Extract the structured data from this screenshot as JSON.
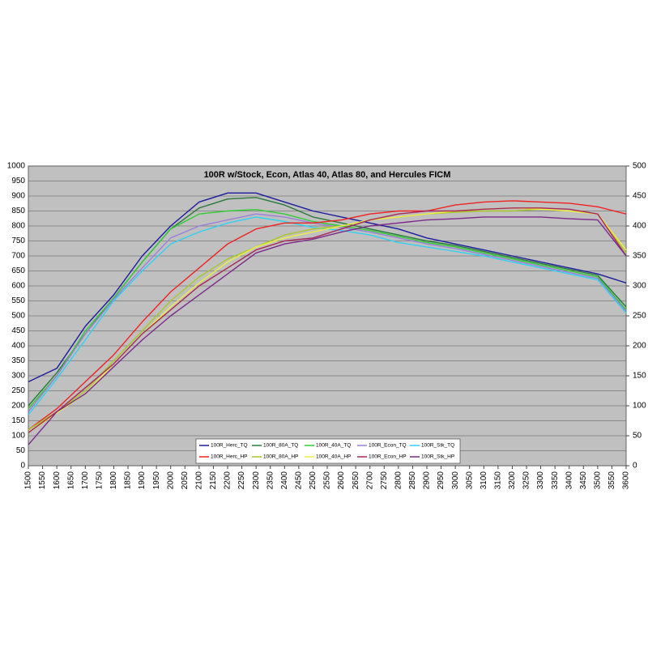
{
  "chart_data": {
    "type": "line",
    "title": "100R w/Stock, Econ, Atlas 40, Atlas 80, and Hercules FICM",
    "x": [
      1500,
      1600,
      1700,
      1800,
      1900,
      2000,
      2100,
      2200,
      2300,
      2400,
      2500,
      2600,
      2700,
      2800,
      2900,
      3000,
      3100,
      3200,
      3300,
      3400,
      3500,
      3600
    ],
    "xlim": [
      1500,
      3600
    ],
    "xticks": [
      1500,
      1550,
      1600,
      1650,
      1700,
      1750,
      1800,
      1850,
      1900,
      1950,
      2000,
      2050,
      2100,
      2150,
      2200,
      2250,
      2300,
      2350,
      2400,
      2450,
      2500,
      2550,
      2600,
      2650,
      2700,
      2750,
      2800,
      2850,
      2900,
      2950,
      3000,
      3050,
      3100,
      3150,
      3200,
      3250,
      3300,
      3350,
      3400,
      3450,
      3500,
      3550,
      3600
    ],
    "ylim": [
      0,
      1000
    ],
    "yticks": [
      0,
      50,
      100,
      150,
      200,
      250,
      300,
      350,
      400,
      450,
      500,
      550,
      600,
      650,
      700,
      750,
      800,
      850,
      900,
      950,
      1000
    ],
    "y2lim": [
      0,
      500
    ],
    "y2ticks": [
      0,
      50,
      100,
      150,
      200,
      250,
      300,
      350,
      400,
      450,
      500
    ],
    "grid": true,
    "series": [
      {
        "name": "100R_Herc_TQ",
        "color": "#1c1c9c",
        "values": [
          280,
          325,
          465,
          570,
          700,
          800,
          880,
          910,
          910,
          880,
          850,
          830,
          810,
          790,
          760,
          740,
          720,
          700,
          680,
          660,
          640,
          610
        ]
      },
      {
        "name": "100R_80A_TQ",
        "color": "#2a7a3a",
        "values": [
          200,
          310,
          440,
          560,
          680,
          790,
          860,
          890,
          895,
          870,
          830,
          810,
          790,
          770,
          750,
          735,
          715,
          695,
          675,
          655,
          635,
          530
        ]
      },
      {
        "name": "100R_40A_TQ",
        "color": "#33cc33",
        "values": [
          190,
          300,
          450,
          560,
          680,
          790,
          840,
          850,
          855,
          840,
          815,
          800,
          785,
          765,
          745,
          730,
          710,
          690,
          670,
          650,
          630,
          520
        ]
      },
      {
        "name": "100R_Econ_TQ",
        "color": "#9a80d8",
        "values": [
          180,
          300,
          440,
          555,
          660,
          760,
          800,
          820,
          840,
          830,
          810,
          795,
          780,
          760,
          740,
          725,
          705,
          685,
          665,
          645,
          625,
          515
        ]
      },
      {
        "name": "100R_Stk_TQ",
        "color": "#33d0f0",
        "values": [
          170,
          290,
          420,
          550,
          650,
          740,
          780,
          810,
          830,
          815,
          795,
          785,
          770,
          745,
          730,
          715,
          700,
          680,
          660,
          640,
          620,
          510
        ]
      },
      {
        "name": "100R_Herc_HP",
        "color": "#ee2222",
        "axis": "y2",
        "values": [
          60,
          95,
          140,
          185,
          240,
          290,
          330,
          370,
          395,
          405,
          405,
          410,
          420,
          425,
          425,
          435,
          440,
          442,
          440,
          438,
          432,
          420
        ]
      },
      {
        "name": "100R_80A_HP",
        "color": "#a8c828",
        "axis": "y2",
        "values": [
          60,
          90,
          125,
          175,
          225,
          275,
          315,
          345,
          365,
          385,
          395,
          400,
          410,
          415,
          420,
          423,
          425,
          425,
          428,
          425,
          420,
          355
        ]
      },
      {
        "name": "100R_40A_HP",
        "color": "#eeee44",
        "axis": "y2",
        "values": [
          55,
          88,
          120,
          170,
          220,
          265,
          305,
          340,
          365,
          380,
          390,
          400,
          410,
          415,
          420,
          425,
          428,
          430,
          428,
          425,
          420,
          360
        ]
      },
      {
        "name": "100R_Econ_HP",
        "color": "#a82858",
        "axis": "y2",
        "values": [
          55,
          90,
          130,
          170,
          220,
          260,
          300,
          330,
          360,
          375,
          380,
          395,
          410,
          420,
          425,
          425,
          428,
          430,
          430,
          428,
          420,
          350
        ]
      },
      {
        "name": "100R_Stk_HP",
        "color": "#7a2a8a",
        "axis": "y2",
        "values": [
          35,
          90,
          120,
          165,
          210,
          250,
          285,
          320,
          355,
          370,
          378,
          390,
          400,
          405,
          410,
          412,
          415,
          415,
          415,
          412,
          410,
          350
        ]
      }
    ]
  }
}
